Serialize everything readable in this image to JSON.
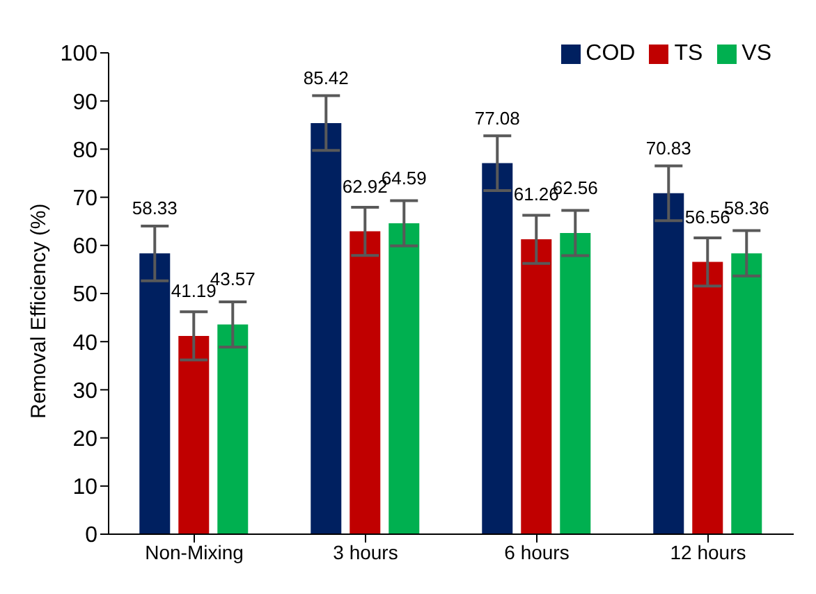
{
  "chart_data": {
    "type": "bar",
    "ylabel": "Removal Efficiency (%)",
    "categories": [
      "Non-Mixing",
      "3 hours",
      "6 hours",
      "12 hours"
    ],
    "series": [
      {
        "name": "COD",
        "color": "#002060",
        "values": [
          58.33,
          85.42,
          77.08,
          70.83
        ],
        "errors": [
          5.7,
          5.7,
          5.7,
          5.7
        ]
      },
      {
        "name": "TS",
        "color": "#c00000",
        "values": [
          41.19,
          62.92,
          61.26,
          56.56
        ],
        "errors": [
          5,
          5,
          5,
          5
        ]
      },
      {
        "name": "VS",
        "color": "#00b050",
        "values": [
          43.57,
          64.59,
          62.56,
          58.36
        ],
        "errors": [
          4.7,
          4.7,
          4.7,
          4.7
        ]
      }
    ],
    "ylim": [
      0,
      100
    ],
    "yticks": [
      0,
      10,
      20,
      30,
      40,
      50,
      60,
      70,
      80,
      90,
      100
    ],
    "grid": false,
    "legend": "top right",
    "data_labels": true
  }
}
